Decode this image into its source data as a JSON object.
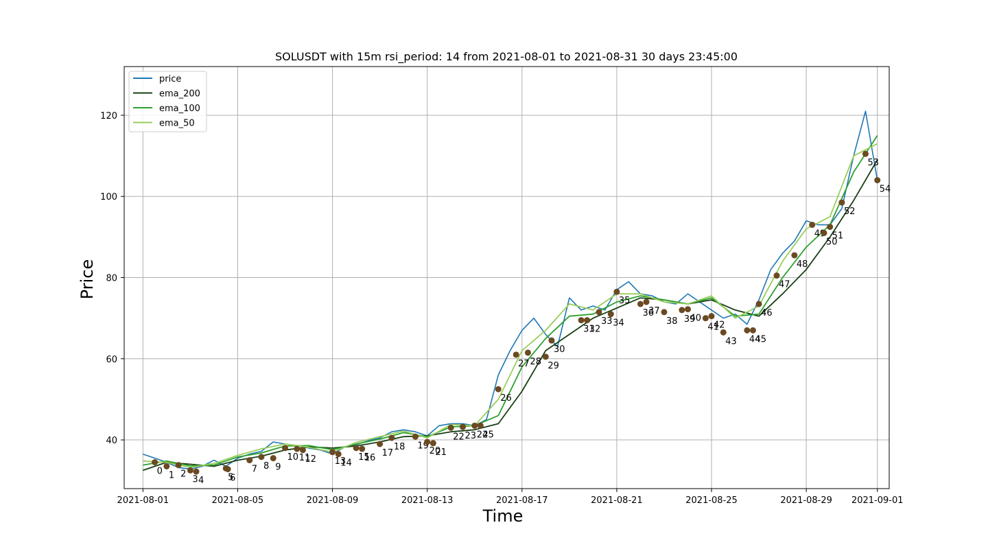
{
  "chart_data": {
    "type": "line",
    "title": "SOLUSDT    with   15m  rsi_period: 14   from  2021-08-01  to 2021-08-31   30 days 23:45:00",
    "xlabel": "Time",
    "ylabel": "Price",
    "xlim": [
      "2021-07-31T05:00",
      "2021-09-01T12:00"
    ],
    "ylim": [
      28,
      132
    ],
    "x_ticks": [
      "2021-08-01",
      "2021-08-05",
      "2021-08-09",
      "2021-08-13",
      "2021-08-17",
      "2021-08-21",
      "2021-08-25",
      "2021-08-29",
      "2021-09-01"
    ],
    "y_ticks": [
      40,
      60,
      80,
      100,
      120
    ],
    "grid": true,
    "legend_position": "upper-left",
    "colors": {
      "price": "#1f77b4",
      "ema_200": "#173e13",
      "ema_100": "#2ca02c",
      "ema_50": "#9acd5a",
      "marker": "#6b4a22"
    },
    "series": [
      {
        "name": "price",
        "x": [
          "2021-08-01T00:00",
          "2021-08-01T12:00",
          "2021-08-02T00:00",
          "2021-08-02T12:00",
          "2021-08-03T00:00",
          "2021-08-03T12:00",
          "2021-08-04T00:00",
          "2021-08-04T12:00",
          "2021-08-05T00:00",
          "2021-08-05T12:00",
          "2021-08-06T00:00",
          "2021-08-06T12:00",
          "2021-08-07T00:00",
          "2021-08-07T12:00",
          "2021-08-08T00:00",
          "2021-08-08T12:00",
          "2021-08-09T00:00",
          "2021-08-09T12:00",
          "2021-08-10T00:00",
          "2021-08-10T12:00",
          "2021-08-11T00:00",
          "2021-08-11T12:00",
          "2021-08-12T00:00",
          "2021-08-12T12:00",
          "2021-08-13T00:00",
          "2021-08-13T12:00",
          "2021-08-14T00:00",
          "2021-08-14T12:00",
          "2021-08-15T00:00",
          "2021-08-15T12:00",
          "2021-08-16T00:00",
          "2021-08-16T12:00",
          "2021-08-17T00:00",
          "2021-08-17T12:00",
          "2021-08-18T00:00",
          "2021-08-18T12:00",
          "2021-08-19T00:00",
          "2021-08-19T12:00",
          "2021-08-20T00:00",
          "2021-08-20T12:00",
          "2021-08-21T00:00",
          "2021-08-21T12:00",
          "2021-08-22T00:00",
          "2021-08-22T12:00",
          "2021-08-23T00:00",
          "2021-08-23T12:00",
          "2021-08-24T00:00",
          "2021-08-24T12:00",
          "2021-08-25T00:00",
          "2021-08-25T12:00",
          "2021-08-26T00:00",
          "2021-08-26T12:00",
          "2021-08-27T00:00",
          "2021-08-27T12:00",
          "2021-08-28T00:00",
          "2021-08-28T12:00",
          "2021-08-29T00:00",
          "2021-08-29T12:00",
          "2021-08-30T00:00",
          "2021-08-30T12:00",
          "2021-08-31T00:00",
          "2021-08-31T12:00",
          "2021-09-01T00:00"
        ],
        "values": [
          36.5,
          35.5,
          34.5,
          33.2,
          32.8,
          33.5,
          35.0,
          33.5,
          35.5,
          36.5,
          37.2,
          39.5,
          39.0,
          38.6,
          38.0,
          37.5,
          36.5,
          38.2,
          38.8,
          39.8,
          40.5,
          42.0,
          42.5,
          42.0,
          41.0,
          43.5,
          44.0,
          44.0,
          43.5,
          45.0,
          56.0,
          62.0,
          67.0,
          70.0,
          66.0,
          63.0,
          75.0,
          72.0,
          73.0,
          72.0,
          77.0,
          79.0,
          76.0,
          75.5,
          74.0,
          73.5,
          76.0,
          74.0,
          72.0,
          70.0,
          71.0,
          68.5,
          74.5,
          82.0,
          86.0,
          89.0,
          94.0,
          93.0,
          93.0,
          97.0,
          110.0,
          121.0,
          104.0
        ]
      },
      {
        "name": "ema_200",
        "x": [
          "2021-08-01T00:00",
          "2021-08-02T00:00",
          "2021-08-03T00:00",
          "2021-08-04T00:00",
          "2021-08-05T00:00",
          "2021-08-06T00:00",
          "2021-08-07T00:00",
          "2021-08-08T00:00",
          "2021-08-09T00:00",
          "2021-08-10T00:00",
          "2021-08-11T00:00",
          "2021-08-12T00:00",
          "2021-08-13T00:00",
          "2021-08-14T00:00",
          "2021-08-15T00:00",
          "2021-08-16T00:00",
          "2021-08-17T00:00",
          "2021-08-18T00:00",
          "2021-08-19T00:00",
          "2021-08-20T00:00",
          "2021-08-21T00:00",
          "2021-08-22T00:00",
          "2021-08-23T00:00",
          "2021-08-24T00:00",
          "2021-08-25T00:00",
          "2021-08-26T00:00",
          "2021-08-27T00:00",
          "2021-08-28T00:00",
          "2021-08-29T00:00",
          "2021-08-30T00:00",
          "2021-08-31T00:00",
          "2021-09-01T00:00"
        ],
        "values": [
          32.5,
          34.5,
          34.0,
          33.5,
          35.0,
          36.0,
          37.5,
          38.3,
          38.0,
          38.5,
          39.5,
          40.8,
          41.0,
          42.0,
          42.5,
          44.0,
          52.0,
          62.0,
          66.0,
          70.0,
          72.5,
          75.0,
          74.5,
          73.5,
          74.5,
          72.0,
          70.5,
          76.0,
          82.0,
          90.0,
          99.0,
          109.0
        ]
      },
      {
        "name": "ema_100",
        "x": [
          "2021-08-01T00:00",
          "2021-08-02T00:00",
          "2021-08-03T00:00",
          "2021-08-04T00:00",
          "2021-08-05T00:00",
          "2021-08-06T00:00",
          "2021-08-07T00:00",
          "2021-08-08T00:00",
          "2021-08-09T00:00",
          "2021-08-10T00:00",
          "2021-08-11T00:00",
          "2021-08-12T00:00",
          "2021-08-13T00:00",
          "2021-08-14T00:00",
          "2021-08-15T00:00",
          "2021-08-16T00:00",
          "2021-08-17T00:00",
          "2021-08-18T00:00",
          "2021-08-19T00:00",
          "2021-08-20T00:00",
          "2021-08-21T00:00",
          "2021-08-22T00:00",
          "2021-08-23T00:00",
          "2021-08-24T00:00",
          "2021-08-25T00:00",
          "2021-08-26T00:00",
          "2021-08-27T00:00",
          "2021-08-28T00:00",
          "2021-08-29T00:00",
          "2021-08-30T00:00",
          "2021-08-31T00:00",
          "2021-09-01T00:00"
        ],
        "values": [
          33.8,
          34.8,
          33.6,
          33.8,
          35.8,
          36.8,
          38.5,
          38.6,
          37.6,
          39.0,
          40.2,
          41.8,
          40.8,
          43.2,
          43.5,
          46.0,
          58.0,
          65.0,
          70.5,
          71.0,
          74.0,
          75.5,
          74.5,
          73.5,
          75.0,
          70.5,
          71.0,
          80.0,
          87.5,
          93.0,
          106.0,
          115.0
        ]
      },
      {
        "name": "ema_50",
        "x": [
          "2021-08-01T00:00",
          "2021-08-02T00:00",
          "2021-08-03T00:00",
          "2021-08-04T00:00",
          "2021-08-05T00:00",
          "2021-08-06T00:00",
          "2021-08-07T00:00",
          "2021-08-08T00:00",
          "2021-08-09T00:00",
          "2021-08-10T00:00",
          "2021-08-11T00:00",
          "2021-08-12T00:00",
          "2021-08-13T00:00",
          "2021-08-14T00:00",
          "2021-08-15T00:00",
          "2021-08-16T00:00",
          "2021-08-17T00:00",
          "2021-08-18T00:00",
          "2021-08-19T00:00",
          "2021-08-20T00:00",
          "2021-08-21T00:00",
          "2021-08-22T00:00",
          "2021-08-23T00:00",
          "2021-08-24T00:00",
          "2021-08-25T00:00",
          "2021-08-26T00:00",
          "2021-08-27T00:00",
          "2021-08-28T00:00",
          "2021-08-29T00:00",
          "2021-08-30T00:00",
          "2021-08-31T00:00",
          "2021-09-01T00:00"
        ],
        "values": [
          34.8,
          34.5,
          33.2,
          34.2,
          36.2,
          37.8,
          39.0,
          38.2,
          37.0,
          39.4,
          40.8,
          42.2,
          40.5,
          43.8,
          43.5,
          50.0,
          62.0,
          67.0,
          73.5,
          72.0,
          76.0,
          76.0,
          74.0,
          73.5,
          75.5,
          70.0,
          73.0,
          84.0,
          92.0,
          95.0,
          110.0,
          113.0
        ]
      }
    ],
    "markers": [
      {
        "label": "0",
        "x": "2021-08-01T12:00",
        "y": 34.5
      },
      {
        "label": "1",
        "x": "2021-08-02T00:00",
        "y": 33.5
      },
      {
        "label": "2",
        "x": "2021-08-02T12:00",
        "y": 33.8
      },
      {
        "label": "3",
        "x": "2021-08-03T00:00",
        "y": 32.5
      },
      {
        "label": "4",
        "x": "2021-08-03T06:00",
        "y": 32.2
      },
      {
        "label": "5",
        "x": "2021-08-04T12:00",
        "y": 33.0
      },
      {
        "label": "6",
        "x": "2021-08-04T14:00",
        "y": 32.8
      },
      {
        "label": "7",
        "x": "2021-08-05T12:00",
        "y": 35.0
      },
      {
        "label": "8",
        "x": "2021-08-06T00:00",
        "y": 35.8
      },
      {
        "label": "9",
        "x": "2021-08-06T12:00",
        "y": 35.5
      },
      {
        "label": "10",
        "x": "2021-08-07T00:00",
        "y": 38.0
      },
      {
        "label": "11",
        "x": "2021-08-07T12:00",
        "y": 37.8
      },
      {
        "label": "12",
        "x": "2021-08-07T18:00",
        "y": 37.5
      },
      {
        "label": "13",
        "x": "2021-08-09T00:00",
        "y": 37.0
      },
      {
        "label": "14",
        "x": "2021-08-09T06:00",
        "y": 36.5
      },
      {
        "label": "15",
        "x": "2021-08-10T00:00",
        "y": 38.0
      },
      {
        "label": "16",
        "x": "2021-08-10T06:00",
        "y": 37.8
      },
      {
        "label": "17",
        "x": "2021-08-11T00:00",
        "y": 39.0
      },
      {
        "label": "18",
        "x": "2021-08-11T12:00",
        "y": 40.5
      },
      {
        "label": "19",
        "x": "2021-08-12T12:00",
        "y": 40.8
      },
      {
        "label": "20",
        "x": "2021-08-13T00:00",
        "y": 39.5
      },
      {
        "label": "21",
        "x": "2021-08-13T06:00",
        "y": 39.2
      },
      {
        "label": "22",
        "x": "2021-08-14T00:00",
        "y": 43.0
      },
      {
        "label": "23",
        "x": "2021-08-14T12:00",
        "y": 43.2
      },
      {
        "label": "24",
        "x": "2021-08-15T00:00",
        "y": 43.5
      },
      {
        "label": "25",
        "x": "2021-08-15T06:00",
        "y": 43.5
      },
      {
        "label": "26",
        "x": "2021-08-16T00:00",
        "y": 52.5
      },
      {
        "label": "27",
        "x": "2021-08-16T18:00",
        "y": 61.0
      },
      {
        "label": "28",
        "x": "2021-08-17T06:00",
        "y": 61.5
      },
      {
        "label": "29",
        "x": "2021-08-18T00:00",
        "y": 60.5
      },
      {
        "label": "30",
        "x": "2021-08-18T06:00",
        "y": 64.5
      },
      {
        "label": "31",
        "x": "2021-08-19T12:00",
        "y": 69.5
      },
      {
        "label": "32",
        "x": "2021-08-19T18:00",
        "y": 69.5
      },
      {
        "label": "33",
        "x": "2021-08-20T06:00",
        "y": 71.5
      },
      {
        "label": "34",
        "x": "2021-08-20T18:00",
        "y": 71.0
      },
      {
        "label": "35",
        "x": "2021-08-21T00:00",
        "y": 76.5
      },
      {
        "label": "36",
        "x": "2021-08-22T00:00",
        "y": 73.5
      },
      {
        "label": "37",
        "x": "2021-08-22T06:00",
        "y": 74.0
      },
      {
        "label": "38",
        "x": "2021-08-23T00:00",
        "y": 71.5
      },
      {
        "label": "39",
        "x": "2021-08-23T18:00",
        "y": 72.0
      },
      {
        "label": "40",
        "x": "2021-08-24T00:00",
        "y": 72.2
      },
      {
        "label": "41",
        "x": "2021-08-24T18:00",
        "y": 70.0
      },
      {
        "label": "42",
        "x": "2021-08-25T00:00",
        "y": 70.5
      },
      {
        "label": "43",
        "x": "2021-08-25T12:00",
        "y": 66.5
      },
      {
        "label": "44",
        "x": "2021-08-26T12:00",
        "y": 67.0
      },
      {
        "label": "45",
        "x": "2021-08-26T18:00",
        "y": 67.0
      },
      {
        "label": "46",
        "x": "2021-08-27T00:00",
        "y": 73.5
      },
      {
        "label": "47",
        "x": "2021-08-27T18:00",
        "y": 80.5
      },
      {
        "label": "48",
        "x": "2021-08-28T12:00",
        "y": 85.5
      },
      {
        "label": "49",
        "x": "2021-08-29T06:00",
        "y": 93.0
      },
      {
        "label": "50",
        "x": "2021-08-29T18:00",
        "y": 91.0
      },
      {
        "label": "51",
        "x": "2021-08-30T00:00",
        "y": 92.5
      },
      {
        "label": "52",
        "x": "2021-08-30T12:00",
        "y": 98.5
      },
      {
        "label": "53",
        "x": "2021-08-31T12:00",
        "y": 110.5
      },
      {
        "label": "54",
        "x": "2021-09-01T00:00",
        "y": 104.0
      }
    ]
  }
}
